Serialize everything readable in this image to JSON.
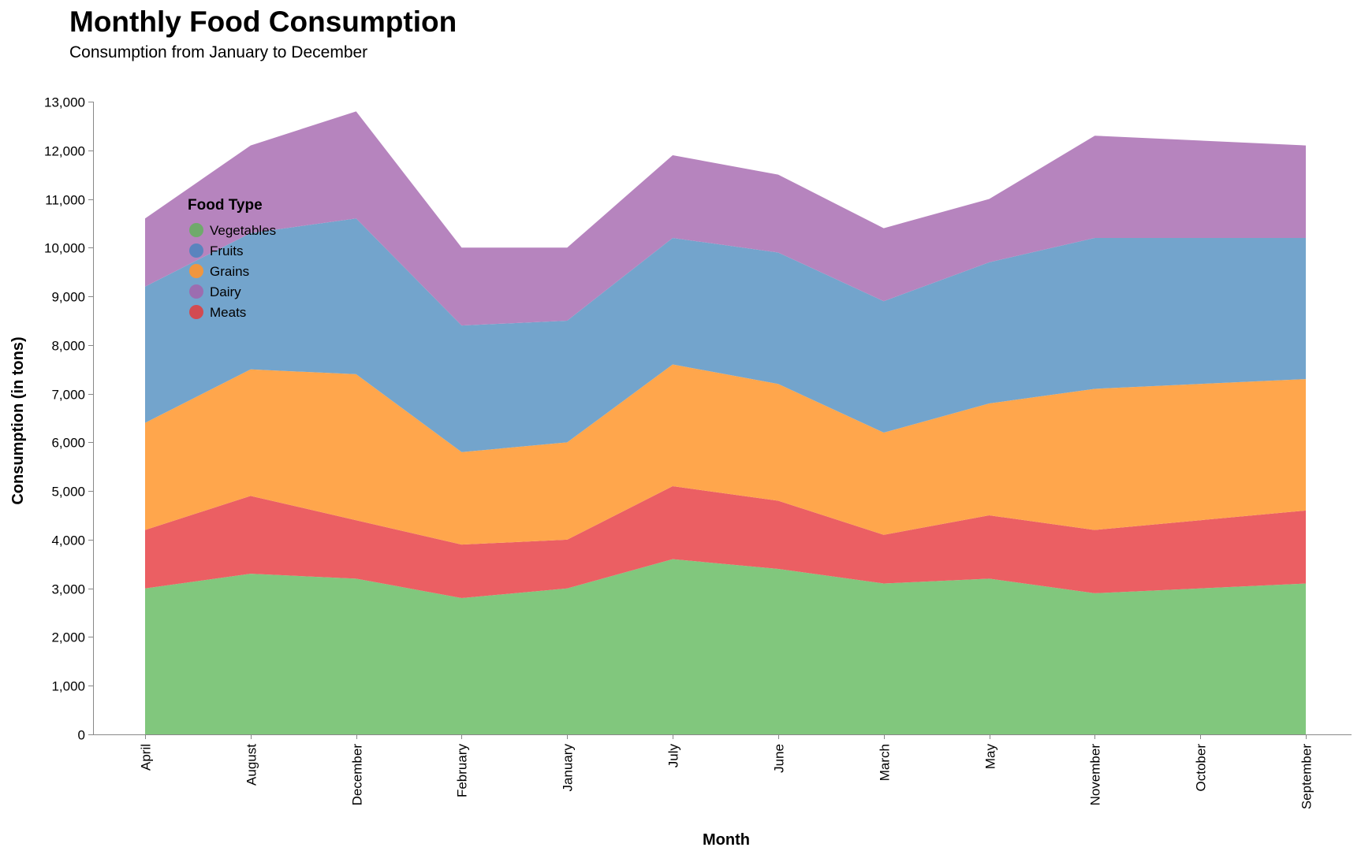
{
  "chart_data": {
    "type": "area",
    "stacked": true,
    "title": "Monthly Food Consumption",
    "subtitle": "Consumption from January to December",
    "xlabel": "Month",
    "ylabel": "Consumption (in tons)",
    "ylim": [
      0,
      13000
    ],
    "yticks": [
      0,
      1000,
      2000,
      3000,
      4000,
      5000,
      6000,
      7000,
      8000,
      9000,
      10000,
      11000,
      12000,
      13000
    ],
    "categories": [
      "April",
      "August",
      "December",
      "February",
      "January",
      "July",
      "June",
      "March",
      "May",
      "November",
      "October",
      "September"
    ],
    "legend_title": "Food Type",
    "legend_position": "top-left",
    "grid": false,
    "series": [
      {
        "name": "Vegetables",
        "color": "#81c77d",
        "legend_color": "#6faa6b",
        "values": [
          3000,
          3300,
          3200,
          2800,
          3000,
          3600,
          3400,
          3100,
          3200,
          2900,
          3000,
          3100
        ]
      },
      {
        "name": "Meats",
        "color": "#eb5f63",
        "legend_color": "#d24b51",
        "values": [
          1200,
          1600,
          1200,
          1100,
          1000,
          1500,
          1400,
          1000,
          1300,
          1300,
          1400,
          1500
        ]
      },
      {
        "name": "Grains",
        "color": "#ffa64c",
        "legend_color": "#f0963f",
        "values": [
          2200,
          2600,
          3000,
          1900,
          2000,
          2500,
          2400,
          2100,
          2300,
          2900,
          2800,
          2700
        ]
      },
      {
        "name": "Fruits",
        "color": "#73a4cc",
        "legend_color": "#5a84be",
        "values": [
          2800,
          2800,
          3200,
          2600,
          2500,
          2600,
          2700,
          2700,
          2900,
          3100,
          3000,
          2900
        ]
      },
      {
        "name": "Dairy",
        "color": "#b684be",
        "legend_color": "#9c6db0",
        "values": [
          1400,
          1800,
          2200,
          1600,
          1500,
          1700,
          1600,
          1500,
          1300,
          2100,
          2000,
          1900
        ]
      }
    ],
    "legend_order": [
      "Vegetables",
      "Fruits",
      "Grains",
      "Dairy",
      "Meats"
    ]
  }
}
